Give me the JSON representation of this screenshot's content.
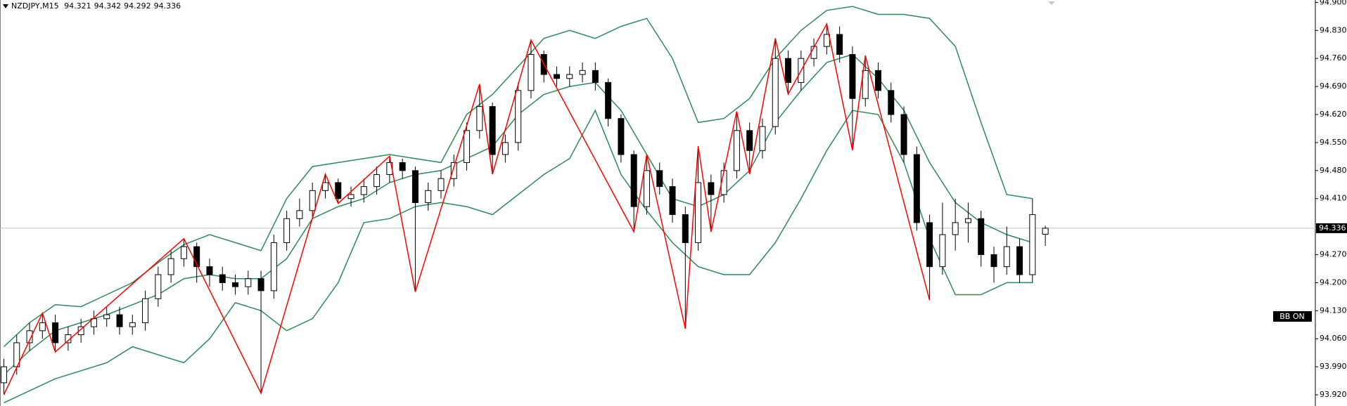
{
  "chart_data": {
    "type": "candlestick",
    "symbol": "NZDJPY,M15",
    "header_ohlc": [
      94.321,
      94.342,
      94.292,
      94.336
    ],
    "indicator_label": "BB ON",
    "current_price": 94.336,
    "ylim": [
      93.892,
      94.906
    ],
    "xlim": [
      -0.3,
      102
    ],
    "yticks": [
      {
        "value": 94.9,
        "label": "94.900"
      },
      {
        "value": 94.83,
        "label": "94.830"
      },
      {
        "value": 94.76,
        "label": "94.760"
      },
      {
        "value": 94.69,
        "label": "94.690"
      },
      {
        "value": 94.62,
        "label": "94.620"
      },
      {
        "value": 94.55,
        "label": "94.550"
      },
      {
        "value": 94.48,
        "label": "94.480"
      },
      {
        "value": 94.41,
        "label": "94.410"
      },
      {
        "value": 94.27,
        "label": "94.270"
      },
      {
        "value": 94.2,
        "label": "94.200"
      },
      {
        "value": 94.13,
        "label": "94.130"
      },
      {
        "value": 94.06,
        "label": "94.060"
      },
      {
        "value": 93.99,
        "label": "93.990"
      },
      {
        "value": 93.92,
        "label": "93.920"
      }
    ],
    "candles": {
      "open": [
        93.95,
        93.99,
        94.05,
        94.08,
        94.1,
        94.05,
        94.07,
        94.09,
        94.11,
        94.12,
        94.09,
        94.1,
        94.16,
        94.22,
        94.26,
        94.29,
        94.24,
        94.22,
        94.2,
        94.19,
        94.21,
        94.18,
        94.3,
        94.36,
        94.38,
        94.43,
        94.45,
        94.41,
        94.42,
        94.44,
        94.47,
        94.5,
        94.48,
        94.4,
        94.43,
        94.46,
        94.5,
        94.58,
        94.64,
        94.52,
        94.55,
        94.68,
        94.77,
        94.72,
        94.71,
        94.72,
        94.73,
        94.7,
        94.61,
        94.52,
        94.39,
        94.48,
        94.44,
        94.37,
        94.3,
        94.45,
        94.42,
        94.48,
        94.58,
        94.53,
        94.59,
        94.76,
        94.7,
        94.76,
        94.79,
        94.82,
        94.77,
        94.66,
        94.73,
        94.68,
        94.62,
        94.52,
        94.35,
        94.24,
        94.32,
        94.35,
        94.36,
        94.27,
        94.24,
        94.29,
        94.22,
        94.321
      ],
      "high": [
        94.01,
        94.07,
        94.1,
        94.124,
        94.12,
        94.09,
        94.11,
        94.13,
        94.14,
        94.14,
        94.12,
        94.18,
        94.24,
        94.28,
        94.31,
        94.3,
        94.26,
        94.24,
        94.22,
        94.23,
        94.23,
        94.32,
        94.38,
        94.41,
        94.45,
        94.471,
        94.46,
        94.44,
        94.46,
        94.49,
        94.516,
        94.51,
        94.49,
        94.45,
        94.48,
        94.52,
        94.6,
        94.696,
        94.65,
        94.57,
        94.7,
        94.806,
        94.78,
        94.74,
        94.74,
        94.75,
        94.75,
        94.71,
        94.62,
        94.53,
        94.52,
        94.5,
        94.46,
        94.39,
        94.541,
        94.47,
        94.5,
        94.628,
        94.6,
        94.61,
        94.81,
        94.78,
        94.78,
        94.81,
        94.846,
        94.84,
        94.79,
        94.767,
        94.75,
        94.7,
        94.64,
        94.54,
        94.37,
        94.4,
        94.41,
        94.4,
        94.38,
        94.29,
        94.34,
        94.31,
        94.41,
        94.342
      ],
      "low": [
        93.92,
        93.97,
        94.03,
        94.06,
        94.027,
        94.03,
        94.05,
        94.07,
        94.09,
        94.07,
        94.07,
        94.08,
        94.14,
        94.2,
        94.24,
        94.2,
        94.19,
        94.18,
        94.17,
        94.17,
        93.924,
        94.16,
        94.28,
        94.34,
        94.36,
        94.41,
        94.398,
        94.39,
        94.4,
        94.42,
        94.45,
        94.46,
        94.177,
        94.38,
        94.41,
        94.44,
        94.48,
        94.56,
        94.471,
        94.5,
        94.53,
        94.66,
        94.7,
        94.69,
        94.69,
        94.7,
        94.68,
        94.59,
        94.5,
        94.327,
        94.37,
        94.42,
        94.35,
        94.085,
        94.28,
        94.327,
        94.4,
        94.46,
        94.471,
        94.51,
        94.57,
        94.671,
        94.68,
        94.74,
        94.77,
        94.75,
        94.531,
        94.64,
        94.66,
        94.6,
        94.5,
        94.33,
        94.156,
        94.22,
        94.28,
        94.3,
        94.24,
        94.2,
        94.22,
        94.2,
        94.2,
        94.292
      ],
      "close": [
        93.99,
        94.05,
        94.08,
        94.1,
        94.05,
        94.07,
        94.09,
        94.11,
        94.12,
        94.09,
        94.1,
        94.16,
        94.22,
        94.26,
        94.29,
        94.24,
        94.22,
        94.2,
        94.19,
        94.21,
        94.18,
        94.3,
        94.36,
        94.38,
        94.43,
        94.45,
        94.41,
        94.42,
        94.44,
        94.47,
        94.5,
        94.48,
        94.4,
        94.43,
        94.46,
        94.5,
        94.58,
        94.64,
        94.52,
        94.55,
        94.68,
        94.77,
        94.72,
        94.71,
        94.72,
        94.73,
        94.7,
        94.61,
        94.52,
        94.39,
        94.48,
        94.44,
        94.37,
        94.3,
        94.45,
        94.42,
        94.48,
        94.58,
        94.53,
        94.59,
        94.76,
        94.7,
        94.76,
        94.79,
        94.82,
        94.77,
        94.66,
        94.73,
        94.68,
        94.62,
        94.52,
        94.35,
        94.24,
        94.32,
        94.35,
        94.36,
        94.27,
        94.24,
        94.29,
        94.22,
        94.37,
        94.336
      ]
    },
    "bands": {
      "color": "#2f8a55",
      "x": [
        0,
        2,
        4,
        6,
        8,
        10,
        12,
        14,
        16,
        18,
        20,
        22,
        24,
        26,
        28,
        30,
        32,
        34,
        36,
        38,
        40,
        42,
        44,
        46,
        48,
        50,
        52,
        54,
        56,
        58,
        60,
        62,
        64,
        66,
        68,
        70,
        72,
        74,
        76,
        78,
        80
      ],
      "upper": [
        94.04,
        94.1,
        94.145,
        94.14,
        94.17,
        94.2,
        94.25,
        94.295,
        94.32,
        94.3,
        94.28,
        94.41,
        94.49,
        94.5,
        94.51,
        94.52,
        94.51,
        94.5,
        94.62,
        94.67,
        94.74,
        94.81,
        94.83,
        94.81,
        94.84,
        94.86,
        94.76,
        94.6,
        94.61,
        94.66,
        94.76,
        94.83,
        94.88,
        94.89,
        94.87,
        94.87,
        94.86,
        94.79,
        94.6,
        94.42,
        94.41
      ],
      "middle": [
        93.97,
        94.03,
        94.08,
        94.1,
        94.12,
        94.145,
        94.17,
        94.21,
        94.22,
        94.21,
        94.21,
        94.26,
        94.36,
        94.39,
        94.41,
        94.45,
        94.47,
        94.48,
        94.51,
        94.54,
        94.62,
        94.67,
        94.69,
        94.7,
        94.63,
        94.52,
        94.41,
        94.39,
        94.42,
        94.48,
        94.6,
        94.68,
        94.75,
        94.77,
        94.71,
        94.63,
        94.5,
        94.4,
        94.35,
        94.32,
        94.3
      ],
      "lower": [
        93.9,
        93.93,
        93.96,
        93.98,
        94.0,
        94.04,
        94.02,
        94.0,
        94.06,
        94.15,
        94.13,
        94.08,
        94.11,
        94.2,
        94.35,
        94.36,
        94.39,
        94.4,
        94.39,
        94.37,
        94.42,
        94.47,
        94.51,
        94.63,
        94.47,
        94.38,
        94.3,
        94.24,
        94.22,
        94.22,
        94.3,
        94.41,
        94.53,
        94.63,
        94.62,
        94.5,
        94.31,
        94.17,
        94.17,
        94.2,
        94.2
      ]
    },
    "zigzag": {
      "color": "#ff0000",
      "x": [
        0,
        3,
        4,
        14,
        20,
        25,
        26,
        30,
        32,
        37,
        38,
        41,
        49,
        50,
        53,
        54,
        55,
        57,
        58,
        60,
        61,
        64,
        66,
        67,
        72
      ],
      "values": [
        93.92,
        94.124,
        94.027,
        94.31,
        93.924,
        94.471,
        94.398,
        94.516,
        94.177,
        94.696,
        94.471,
        94.806,
        94.327,
        94.52,
        94.085,
        94.541,
        94.327,
        94.628,
        94.471,
        94.81,
        94.671,
        94.846,
        94.531,
        94.767,
        94.156
      ]
    }
  }
}
